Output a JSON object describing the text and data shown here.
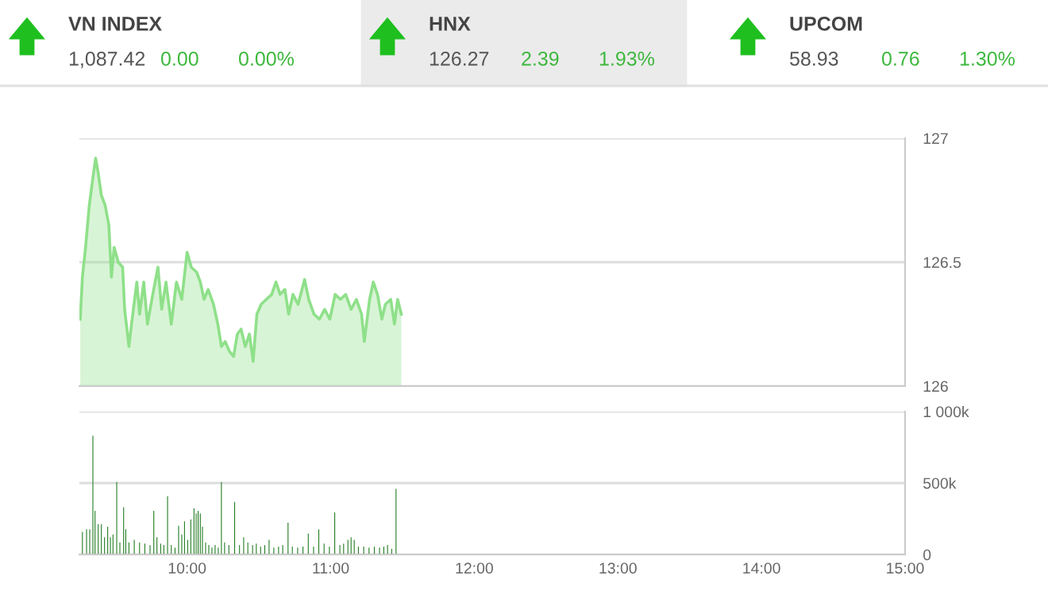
{
  "chart_data": [
    {
      "type": "other",
      "annotations": [
        "VN INDEX",
        "1,087.42",
        "0.00",
        "0.00%",
        "HNX",
        "126.27",
        "2.39",
        "1.93%",
        "UPCOM",
        "58.93",
        "0.76",
        "1.30%"
      ]
    },
    {
      "type": "area",
      "tick_labels": "y",
      "grid": "y",
      "xlim": [
        9.25,
        15
      ],
      "ylim": [
        126,
        127
      ],
      "yticks": [
        126,
        126.5,
        127
      ],
      "series": [
        {
          "color": "#8fe08a",
          "x": [
            9.256,
            9.271,
            9.293,
            9.319,
            9.344,
            9.363,
            9.381,
            9.403,
            9.429,
            9.455,
            9.473,
            9.492,
            9.521,
            9.551,
            9.565,
            9.595,
            9.613,
            9.65,
            9.669,
            9.698,
            9.724,
            9.761,
            9.797,
            9.823,
            9.853,
            9.89,
            9.926,
            9.963,
            10.0,
            10.029,
            10.066,
            10.092,
            10.118,
            10.147,
            10.184,
            10.214,
            10.239,
            10.265,
            10.295,
            10.324,
            10.35,
            10.376,
            10.405,
            10.434,
            10.46,
            10.486,
            10.516,
            10.552,
            10.589,
            10.619,
            10.648,
            10.681,
            10.707,
            10.737,
            10.773,
            10.818,
            10.847,
            10.884,
            10.921,
            10.958,
            10.994,
            11.031,
            11.068,
            11.105,
            11.142,
            11.179,
            11.215,
            11.234,
            11.271,
            11.297,
            11.326,
            11.356,
            11.381,
            11.418,
            11.444,
            11.466,
            11.492
          ],
          "values": [
            126.27,
            126.44,
            126.56,
            126.73,
            126.84,
            126.92,
            126.86,
            126.77,
            126.73,
            126.65,
            126.44,
            126.56,
            126.5,
            126.48,
            126.31,
            126.16,
            126.25,
            126.42,
            126.29,
            126.42,
            126.25,
            126.37,
            126.48,
            126.31,
            126.42,
            126.25,
            126.42,
            126.35,
            126.54,
            126.48,
            126.46,
            126.42,
            126.35,
            126.39,
            126.33,
            126.25,
            126.16,
            126.18,
            126.14,
            126.12,
            126.21,
            126.23,
            126.16,
            126.21,
            126.1,
            126.29,
            126.33,
            126.35,
            126.37,
            126.42,
            126.37,
            126.39,
            126.29,
            126.37,
            126.33,
            126.43,
            126.35,
            126.29,
            126.27,
            126.31,
            126.27,
            126.37,
            126.35,
            126.37,
            126.31,
            126.35,
            126.29,
            126.18,
            126.35,
            126.42,
            126.37,
            126.27,
            126.33,
            126.35,
            126.25,
            126.35,
            126.29
          ]
        }
      ]
    },
    {
      "type": "bar",
      "grid": "y",
      "xlim": [
        9.25,
        15
      ],
      "ylim": [
        0,
        1000000
      ],
      "xticks": [
        {
          "value": 10,
          "label": "10:00"
        },
        {
          "value": 11,
          "label": "11:00"
        },
        {
          "value": 12,
          "label": "12:00"
        },
        {
          "value": 13,
          "label": "13:00"
        },
        {
          "value": 14,
          "label": "14:00"
        },
        {
          "value": 15,
          "label": "15:00"
        }
      ],
      "yticks": [
        {
          "value": 0,
          "label": "0"
        },
        {
          "value": 500000,
          "label": "500k"
        },
        {
          "value": 1000000,
          "label": "1 000k"
        }
      ],
      "series": [
        {
          "color": "#1f7a1f",
          "x": [
            9.271,
            9.3,
            9.322,
            9.344,
            9.359,
            9.381,
            9.403,
            9.425,
            9.447,
            9.466,
            9.484,
            9.51,
            9.532,
            9.558,
            9.573,
            9.595,
            9.632,
            9.669,
            9.706,
            9.742,
            9.768,
            9.79,
            9.816,
            9.838,
            9.864,
            9.89,
            9.916,
            9.941,
            9.963,
            9.982,
            10.004,
            10.026,
            10.048,
            10.063,
            10.077,
            10.092,
            10.107,
            10.129,
            10.151,
            10.173,
            10.195,
            10.217,
            10.239,
            10.261,
            10.291,
            10.331,
            10.365,
            10.394,
            10.423,
            10.456,
            10.482,
            10.512,
            10.541,
            10.571,
            10.604,
            10.637,
            10.666,
            10.703,
            10.733,
            10.77,
            10.807,
            10.844,
            10.881,
            10.917,
            10.954,
            10.991,
            11.028,
            11.064,
            11.09,
            11.12,
            11.142,
            11.164,
            11.193,
            11.23,
            11.267,
            11.304,
            11.34,
            11.37,
            11.396,
            11.425
          ],
          "values": [
            158000,
            176000,
            176000,
            831000,
            305000,
            213000,
            213000,
            121000,
            195000,
            121000,
            140000,
            507000,
            85000,
            331000,
            176000,
            85000,
            103000,
            85000,
            77000,
            66000,
            305000,
            121000,
            77000,
            66000,
            408000,
            66000,
            48000,
            202000,
            140000,
            232000,
            103000,
            246000,
            323000,
            287000,
            305000,
            287000,
            195000,
            85000,
            66000,
            48000,
            66000,
            48000,
            507000,
            85000,
            66000,
            368000,
            66000,
            121000,
            85000,
            66000,
            77000,
            55000,
            66000,
            103000,
            48000,
            55000,
            66000,
            224000,
            55000,
            48000,
            55000,
            147000,
            55000,
            176000,
            77000,
            55000,
            294000,
            66000,
            77000,
            103000,
            121000,
            103000,
            55000,
            55000,
            48000,
            55000,
            48000,
            55000,
            66000,
            40000
          ]
        },
        {
          "color": "#1f7a1f",
          "x": [
            11.455
          ],
          "values": [
            460000
          ]
        }
      ]
    }
  ]
}
